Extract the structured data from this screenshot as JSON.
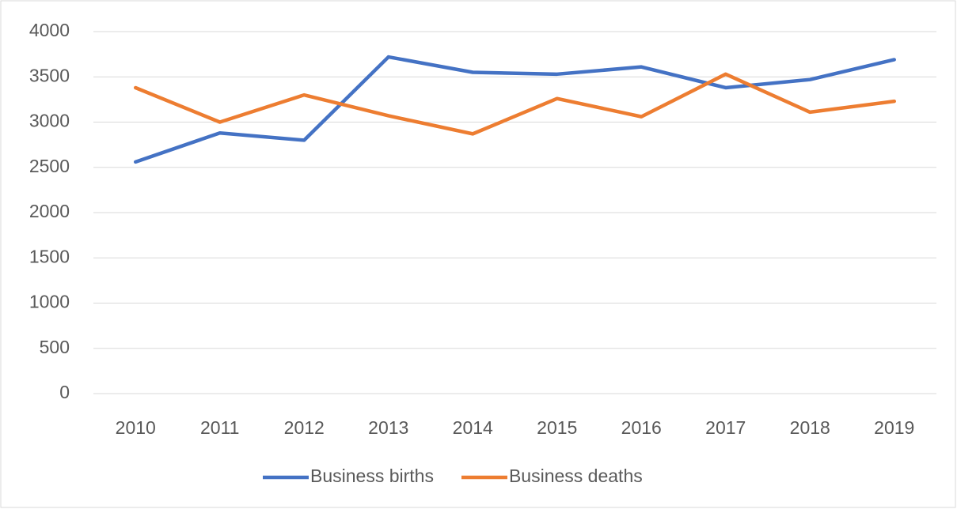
{
  "chart_data": {
    "type": "line",
    "categories": [
      "2010",
      "2011",
      "2012",
      "2013",
      "2014",
      "2015",
      "2016",
      "2017",
      "2018",
      "2019"
    ],
    "series": [
      {
        "name": "Business births",
        "color": "#4472c4",
        "values": [
          2560,
          2880,
          2800,
          3720,
          3550,
          3530,
          3610,
          3380,
          3470,
          3690
        ]
      },
      {
        "name": "Business deaths",
        "color": "#ed7d31",
        "values": [
          3380,
          3000,
          3300,
          3070,
          2870,
          3260,
          3060,
          3530,
          3110,
          3230
        ]
      }
    ],
    "ylim": [
      0,
      4000
    ],
    "yticks": [
      0,
      500,
      1000,
      1500,
      2000,
      2500,
      3000,
      3500,
      4000
    ],
    "grid": true,
    "legend": "bottom"
  }
}
